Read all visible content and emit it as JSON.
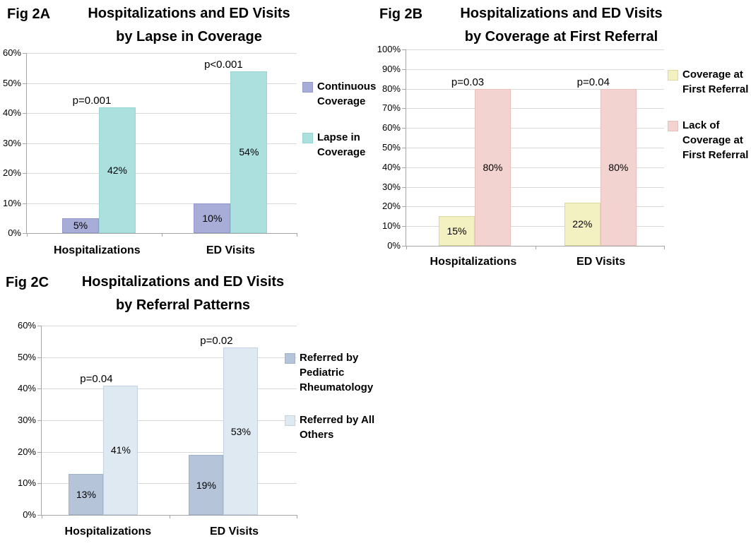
{
  "page": {
    "background": "#ffffff",
    "text_color": "#000000"
  },
  "colors": {
    "gridline": "#d9d9d9",
    "axis": "#a6a6a6"
  },
  "chart_data": [
    {
      "type": "bar",
      "fig_label": "Fig 2A",
      "title": "Hospitalizations and ED Visits by Lapse in Coverage",
      "title_lines": [
        "Hospitalizations and ED Visits",
        "by Lapse in Coverage"
      ],
      "categories": [
        "Hospitalizations",
        "ED Visits"
      ],
      "series": [
        {
          "name": "Continuous Coverage",
          "values": [
            5,
            10
          ],
          "labels": [
            "5%",
            "10%"
          ],
          "fill": "#a8add8",
          "border": "#9297cc"
        },
        {
          "name": "Lapse in Coverage",
          "values": [
            42,
            54
          ],
          "labels": [
            "42%",
            "54%"
          ],
          "fill": "#abe0df",
          "border": "#98d6d5"
        }
      ],
      "annotations": [
        "p=0.001",
        "p<0.001"
      ],
      "xlabel": "",
      "ylabel": "",
      "ylim": [
        0,
        60
      ],
      "ytick_step": 10,
      "yticklabels": [
        "0%",
        "10%",
        "20%",
        "30%",
        "40%",
        "50%",
        "60%"
      ],
      "grid": true,
      "legend_position": "right"
    },
    {
      "type": "bar",
      "fig_label": "Fig 2B",
      "title": "Hospitalizations and ED Visits by Coverage at First Referral",
      "title_lines": [
        "Hospitalizations and ED Visits",
        "by Coverage at First Referral"
      ],
      "categories": [
        "Hospitalizations",
        "ED Visits"
      ],
      "series": [
        {
          "name": "Coverage at First Referral",
          "values": [
            15,
            22
          ],
          "labels": [
            "15%",
            "22%"
          ],
          "fill": "#f3f0c1",
          "border": "#ddd89f"
        },
        {
          "name": "Lack of Coverage at First Referral",
          "values": [
            80,
            80
          ],
          "labels": [
            "80%",
            "80%"
          ],
          "fill": "#f3d3d0",
          "border": "#e7bfbb"
        }
      ],
      "annotations": [
        "p=0.03",
        "p=0.04"
      ],
      "xlabel": "",
      "ylabel": "",
      "ylim": [
        0,
        100
      ],
      "ytick_step": 10,
      "yticklabels": [
        "0%",
        "10%",
        "20%",
        "30%",
        "40%",
        "50%",
        "60%",
        "70%",
        "80%",
        "90%",
        "100%"
      ],
      "grid": true,
      "legend_position": "right"
    },
    {
      "type": "bar",
      "fig_label": "Fig 2C",
      "title": "Hospitalizations and ED Visits by Referral Patterns",
      "title_lines": [
        "Hospitalizations and ED Visits",
        "by Referral Patterns"
      ],
      "categories": [
        "Hospitalizations",
        "ED Visits"
      ],
      "series": [
        {
          "name": "Referred by Pediatric Rheumatology",
          "values": [
            13,
            19
          ],
          "labels": [
            "13%",
            "19%"
          ],
          "fill": "#b6c4da",
          "border": "#9fb2cb"
        },
        {
          "name": "Referred by All Others",
          "values": [
            41,
            53
          ],
          "labels": [
            "41%",
            "53%"
          ],
          "fill": "#dfe9f1",
          "border": "#c2d2e2"
        }
      ],
      "annotations": [
        "p=0.04",
        "p=0.02"
      ],
      "xlabel": "",
      "ylabel": "",
      "ylim": [
        0,
        60
      ],
      "ytick_step": 10,
      "yticklabels": [
        "0%",
        "10%",
        "20%",
        "30%",
        "40%",
        "50%",
        "60%"
      ],
      "grid": true,
      "legend_position": "right"
    }
  ]
}
